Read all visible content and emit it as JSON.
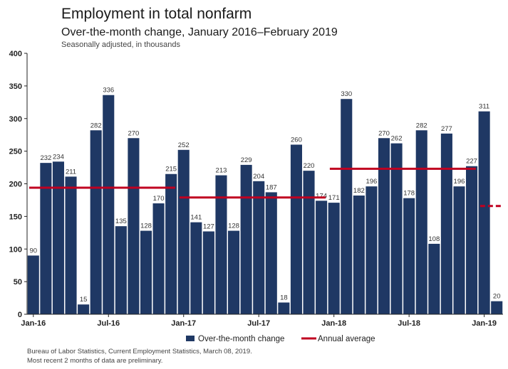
{
  "chart_data": {
    "type": "bar",
    "title": "Employment in total nonfarm",
    "subtitle": "Over-the-month change, January 2016–February 2019",
    "note": "Seasonally adjusted, in thousands",
    "ylim": [
      0,
      400
    ],
    "yticks": [
      0,
      50,
      100,
      150,
      200,
      250,
      300,
      350,
      400
    ],
    "xtick_labels": [
      {
        "index": 0,
        "label": "Jan-16"
      },
      {
        "index": 6,
        "label": "Jul-16"
      },
      {
        "index": 12,
        "label": "Jan-17"
      },
      {
        "index": 18,
        "label": "Jul-17"
      },
      {
        "index": 24,
        "label": "Jan-18"
      },
      {
        "index": 30,
        "label": "Jul-18"
      },
      {
        "index": 36,
        "label": "Jan-19"
      }
    ],
    "values": [
      90,
      232,
      234,
      211,
      15,
      282,
      336,
      135,
      270,
      128,
      170,
      215,
      252,
      141,
      127,
      213,
      128,
      229,
      204,
      187,
      18,
      260,
      220,
      174,
      171,
      330,
      182,
      196,
      270,
      262,
      178,
      282,
      108,
      277,
      196,
      227,
      311,
      20
    ],
    "annual_average": [
      {
        "start": 0,
        "end": 11,
        "value": 194,
        "style": "solid"
      },
      {
        "start": 12,
        "end": 23,
        "value": 179,
        "style": "solid"
      },
      {
        "start": 24,
        "end": 35,
        "value": 223,
        "style": "solid"
      },
      {
        "start": 36,
        "end": 37,
        "value": 166,
        "style": "dashed"
      }
    ],
    "legend": {
      "position": "bottom",
      "bar_label": "Over-the-month change",
      "line_label": "Annual average"
    },
    "colors": {
      "bar": "#1f3864",
      "average": "#c00020",
      "axis": "#222222"
    }
  },
  "footer": {
    "source": "Bureau of Labor Statistics, Current Employment Statistics, March 08, 2019.",
    "note": "Most recent 2 months of data are preliminary."
  }
}
